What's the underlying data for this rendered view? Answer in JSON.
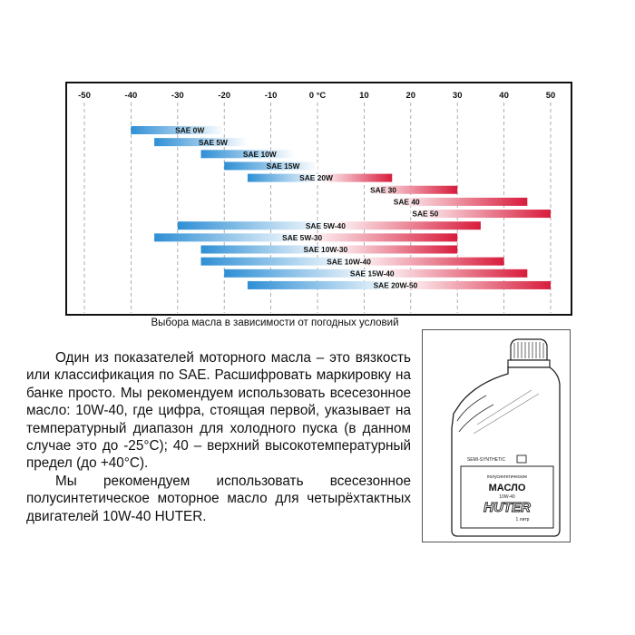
{
  "chart_data": {
    "type": "bar",
    "orientation": "horizontal-range",
    "xaxis": {
      "min": -50,
      "max": 50,
      "ticks": [
        -50,
        -40,
        -30,
        -20,
        -10,
        0,
        10,
        20,
        30,
        40,
        50
      ],
      "tick_labels": [
        "-50",
        "-40",
        "-30",
        "-20",
        "-10",
        "0 °C",
        "10",
        "20",
        "30",
        "40",
        "50"
      ]
    },
    "grid": "vertical dashed lines",
    "series": [
      {
        "label": "SAE 0W",
        "from": -40,
        "to": -20,
        "group": "winter"
      },
      {
        "label": "SAE 5W",
        "from": -35,
        "to": -15,
        "group": "winter"
      },
      {
        "label": "SAE 10W",
        "from": -25,
        "to": -5,
        "group": "winter"
      },
      {
        "label": "SAE 15W",
        "from": -20,
        "to": 0,
        "group": "winter"
      },
      {
        "label": "SAE 20W",
        "from": -15,
        "to": 16,
        "group": "winter-summer"
      },
      {
        "label": "SAE 30",
        "from": 11,
        "to": 30,
        "group": "summer"
      },
      {
        "label": "SAE 40",
        "from": 16,
        "to": 45,
        "group": "summer"
      },
      {
        "label": "SAE 50",
        "from": 20,
        "to": 50,
        "group": "summer"
      },
      {
        "label": "SAE 5W-40",
        "from": -30,
        "to": 35,
        "group": "multigrade"
      },
      {
        "label": "SAE 5W-30",
        "from": -35,
        "to": 30,
        "group": "multigrade"
      },
      {
        "label": "SAE 10W-30",
        "from": -25,
        "to": 30,
        "group": "multigrade"
      },
      {
        "label": "SAE 10W-40",
        "from": -25,
        "to": 40,
        "group": "multigrade"
      },
      {
        "label": "SAE 15W-40",
        "from": -20,
        "to": 45,
        "group": "multigrade"
      },
      {
        "label": "SAE 20W-50",
        "from": -15,
        "to": 50,
        "group": "multigrade"
      }
    ],
    "colors": {
      "cold": "#3a96d8",
      "hot": "#d8213f"
    }
  },
  "caption": "Выбора масла в зависимости от погодных условий",
  "paragraphs": [
    "Один из показателей моторного масла – это вязкость или классификация по SAE. Расшифровать маркировку на банке просто. Мы рекомендуем использовать всесезонное масло: 10W-40, где цифра, стоящая первой, указывает на температурный диапазон для холодного пуска (в данном случае это до -25°C); 40 – верхний высокотемпературный предел (до +40°C).",
    "Мы рекомендуем использовать всесезонное полусинтетическое моторное масло для четырёхтактных двигателей 10W-40 HUTER."
  ],
  "product": {
    "brand": "HUTER",
    "name": "МАСЛО",
    "type": "полусинтетическое",
    "grade": "10W-40",
    "volume": "1 литр",
    "side_label": "SEMI-SYNTHETIC"
  }
}
